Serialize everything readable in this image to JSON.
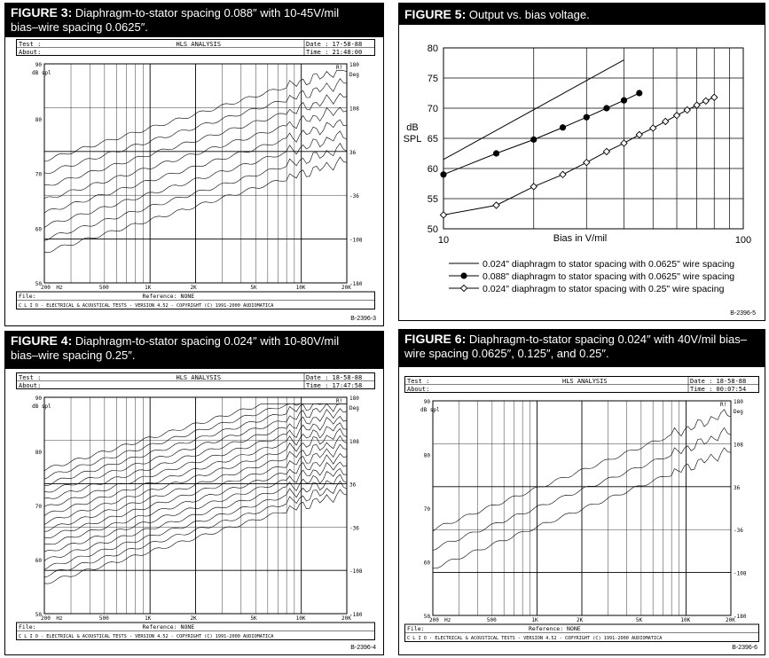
{
  "figures": [
    {
      "id": "fig3",
      "label": "FIGURE 3:",
      "caption_l1": "Diaphragm-to-stator spacing 0.088″ with 10-45V/mil",
      "caption_l2": "bias–wire spacing 0.0625″.",
      "code": "B-2396-3",
      "clio": {
        "test_label": "Test :",
        "about_label": "About:",
        "title": "HLS ANALYSIS",
        "date": "Date : 17-58-88",
        "time": "Time : 21:48:00",
        "file_label": "File:",
        "reference": "Reference: NONE",
        "footer": "C L I O  -  ELECTRICAL & ACOUSTICAL TESTS  -  VERSION 4.52  -  COPYRIGHT (C) 1991-2000 AUDIOMATICA",
        "y_unit_left": "dB spl",
        "y_unit_right": "Deg",
        "y_ticks": [
          "90",
          "80",
          "70",
          "60",
          "50"
        ],
        "y_right_ticks": [
          "180",
          "108",
          "36",
          "-36",
          "-108",
          "-180"
        ],
        "x_ticks": [
          "200",
          "Hz",
          "500",
          "1K",
          "2K",
          "5K",
          "10K",
          "20K"
        ],
        "flag": "R!"
      }
    },
    {
      "id": "fig4",
      "label": "FIGURE 4:",
      "caption_l1": "Diaphragm-to-stator spacing 0.024″ with 10-80V/mil",
      "caption_l2": "bias–wire spacing 0.25″.",
      "code": "B-2396-4",
      "clio": {
        "test_label": "Test :",
        "about_label": "About:",
        "title": "HLS ANALYSIS",
        "date": "Date : 18-58-88",
        "time": "Time : 17:47:58",
        "file_label": "File:",
        "reference": "Reference: NONE",
        "footer": "C L I O  -  ELECTRICAL & ACOUSTICAL TESTS  -  VERSION 4.52  -  COPYRIGHT (C) 1991-2000 AUDIOMATICA",
        "y_unit_left": "dB spl",
        "y_unit_right": "Deg",
        "y_ticks": [
          "90",
          "80",
          "70",
          "60",
          "50"
        ],
        "y_right_ticks": [
          "180",
          "108",
          "36",
          "-36",
          "-108",
          "-180"
        ],
        "x_ticks": [
          "200",
          "Hz",
          "500",
          "1K",
          "2K",
          "5K",
          "10K",
          "20K"
        ],
        "flag": "R!"
      }
    },
    {
      "id": "fig6",
      "label": "FIGURE 6:",
      "caption_l1": "Diaphragm-to-stator spacing 0.024″ with 40V/mil bias–",
      "caption_l2": "wire spacing 0.0625″, 0.125″, and 0.25″.",
      "code": "B-2396-6",
      "clio": {
        "test_label": "Test :",
        "about_label": "About:",
        "title": "HLS ANALYSIS",
        "date": "Date : 18-58-88",
        "time": "Time : 00:07:54",
        "file_label": "File:",
        "reference": "Reference: NONE",
        "footer": "C L I O  -  ELECTRICAL & ACOUSTICAL TESTS  -  VERSION 4.52  -  COPYRIGHT (C) 1991-2000 AUDIOMATICA",
        "y_unit_left": "dB spl",
        "y_unit_right": "Deg",
        "y_ticks": [
          "90",
          "80",
          "70",
          "60",
          "50"
        ],
        "y_right_ticks": [
          "180",
          "108",
          "36",
          "-36",
          "-108",
          "-180"
        ],
        "x_ticks": [
          "200",
          "Hz",
          "500",
          "1K",
          "2K",
          "5K",
          "10K",
          "20K"
        ],
        "flag": "R!"
      }
    }
  ],
  "figure5": {
    "label": "FIGURE 5:",
    "caption": "Output vs. bias voltage.",
    "code": "B-2396-5"
  },
  "chart_data": [
    {
      "type": "line",
      "title": "Output vs. bias voltage.",
      "xlabel": "Bias in V/mil",
      "ylabel": "dB SPL",
      "x_scale": "log",
      "xlim": [
        10,
        100
      ],
      "ylim": [
        50,
        80
      ],
      "x_ticks": [
        "10",
        "100"
      ],
      "y_ticks": [
        "50",
        "55",
        "60",
        "65",
        "70",
        "75",
        "80"
      ],
      "grid": true,
      "legend": "bottom",
      "series": [
        {
          "name": "0.024\" diaphragm to stator spacing with 0.0625\" wire spacing",
          "marker": "none",
          "x": [
            10,
            40
          ],
          "y": [
            61.5,
            78
          ]
        },
        {
          "name": "0.088\" diaphragm to stator spacing with 0.0625\" wire spacing",
          "marker": "filled-circle",
          "x": [
            10,
            15,
            20,
            25,
            30,
            35,
            40,
            45
          ],
          "y": [
            59,
            62.5,
            64.8,
            66.8,
            68.5,
            70,
            71.3,
            72.5
          ]
        },
        {
          "name": "0.024\" diaphragm to stator spacing with 0.25\" wire spacing",
          "marker": "open-diamond",
          "x": [
            10,
            15,
            20,
            25,
            30,
            35,
            40,
            45,
            50,
            55,
            60,
            65,
            70,
            75,
            80
          ],
          "y": [
            52.3,
            53.9,
            57,
            59,
            61,
            62.8,
            64.2,
            65.6,
            66.7,
            67.8,
            68.8,
            69.7,
            70.5,
            71.2,
            71.8
          ]
        }
      ]
    }
  ]
}
